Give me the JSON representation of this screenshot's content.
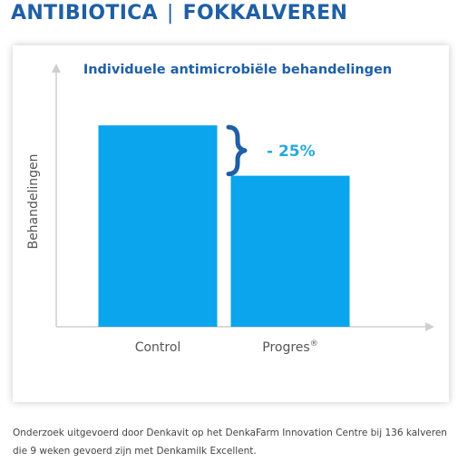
{
  "header": {
    "title_left": "ANTIBIOTICA",
    "separator": "|",
    "title_right": "FOKKALVEREN",
    "color": "#1f5fa5"
  },
  "chart_data": {
    "type": "bar",
    "title": "Individuele antimicrobiële behandelingen",
    "ylabel": "Behandelingen",
    "xlabel": "",
    "categories": [
      "Control",
      "Progres"
    ],
    "category_superscripts": [
      "",
      "®"
    ],
    "values": [
      100,
      75
    ],
    "ylim": [
      0,
      128
    ],
    "bar_color": "#0aa5ec",
    "annotation": {
      "text": "- 25%",
      "color": "#29a8df",
      "bracket_color": "#1f5fa5"
    },
    "grid": false,
    "legend": "none"
  },
  "footnote": {
    "line1": "Onderzoek uitgevoerd door Denkavit op het DenkaFarm Innovation Centre bij 136 kalveren",
    "line2": "die 9 weken gevoerd zijn met Denkamilk Excellent."
  }
}
